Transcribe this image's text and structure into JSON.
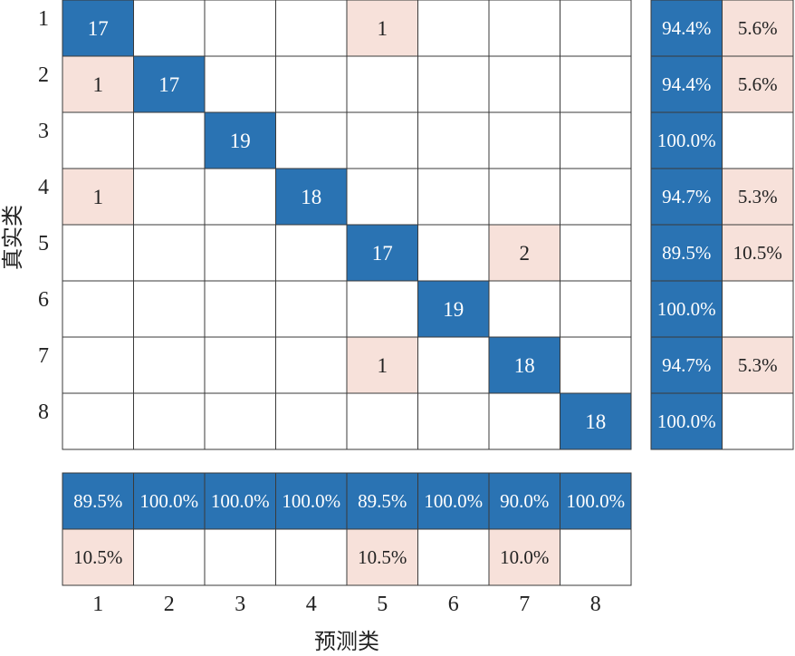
{
  "chart_data": {
    "type": "heatmap",
    "title": "",
    "xlabel": "预测类",
    "ylabel": "真实类",
    "classes": [
      "1",
      "2",
      "3",
      "4",
      "5",
      "6",
      "7",
      "8"
    ],
    "matrix": [
      [
        17,
        0,
        0,
        0,
        1,
        0,
        0,
        0
      ],
      [
        1,
        17,
        0,
        0,
        0,
        0,
        0,
        0
      ],
      [
        0,
        0,
        19,
        0,
        0,
        0,
        0,
        0
      ],
      [
        1,
        0,
        0,
        18,
        0,
        0,
        0,
        0
      ],
      [
        0,
        0,
        0,
        0,
        17,
        0,
        2,
        0
      ],
      [
        0,
        0,
        0,
        0,
        0,
        19,
        0,
        0
      ],
      [
        0,
        0,
        0,
        0,
        1,
        0,
        18,
        0
      ],
      [
        0,
        0,
        0,
        0,
        0,
        0,
        0,
        18
      ]
    ],
    "row_summary": {
      "correct": [
        "94.4%",
        "94.4%",
        "100.0%",
        "94.7%",
        "89.5%",
        "100.0%",
        "94.7%",
        "100.0%"
      ],
      "incorrect": [
        "5.6%",
        "5.6%",
        "",
        "5.3%",
        "10.5%",
        "",
        "5.3%",
        ""
      ]
    },
    "column_summary": {
      "correct": [
        "89.5%",
        "100.0%",
        "100.0%",
        "100.0%",
        "89.5%",
        "100.0%",
        "90.0%",
        "100.0%"
      ],
      "incorrect": [
        "10.5%",
        "",
        "",
        "",
        "10.5%",
        "",
        "10.0%",
        ""
      ]
    },
    "colors": {
      "correct": "#2a73b3",
      "incorrect": "#f7e1da",
      "empty": "#ffffff",
      "grid": "#3a3a3a"
    }
  }
}
